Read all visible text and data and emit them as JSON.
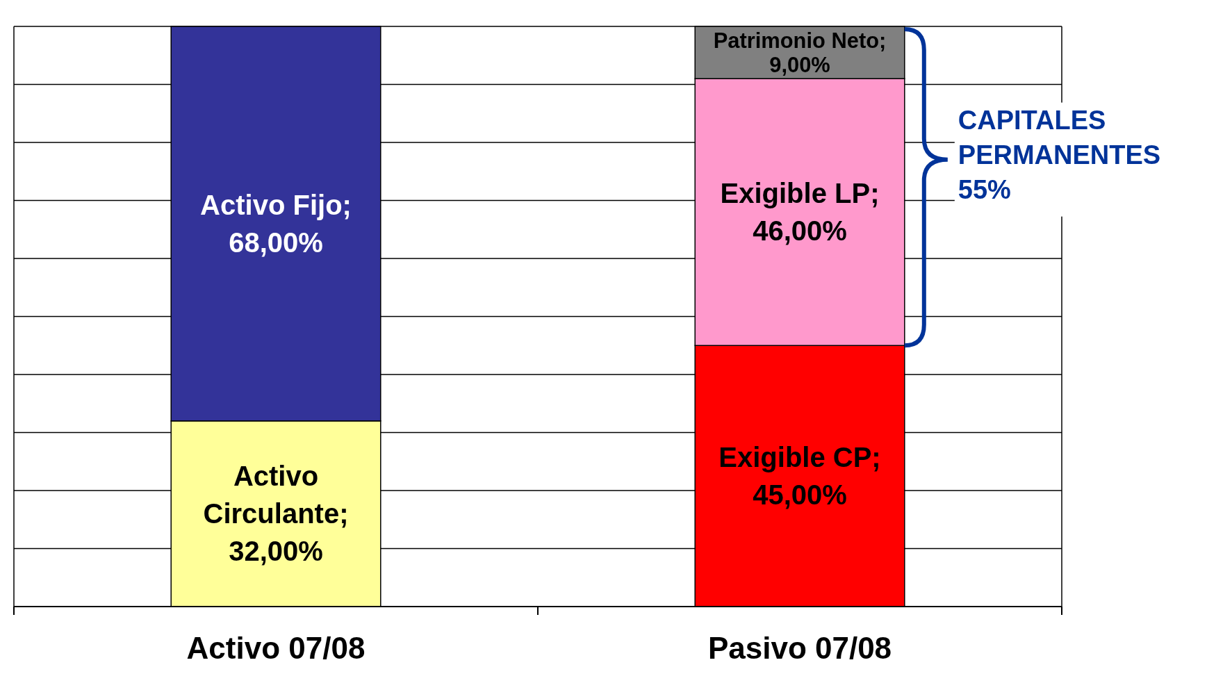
{
  "chart_data": {
    "type": "bar",
    "stacked": true,
    "categories": [
      "Activo 07/08",
      "Pasivo 07/08"
    ],
    "series": [
      {
        "colors": [
          "#ffff99",
          "#ff0000"
        ],
        "values": [
          32,
          45
        ],
        "value_labels": [
          "Activo Circulante; 32,00%",
          "Exigible CP; 45,00%"
        ]
      },
      {
        "colors": [
          "#333399",
          "#ff99cc"
        ],
        "values": [
          68,
          46
        ],
        "value_labels": [
          "Activo Fijo; 68,00%",
          "Exigible LP; 46,00%"
        ]
      },
      {
        "colors": [
          null,
          "#808080"
        ],
        "values": [
          null,
          9
        ],
        "value_labels": [
          null,
          "Patrimonio Neto; 9,00%"
        ]
      }
    ],
    "ylim": [
      0,
      100
    ],
    "yticks": [
      {
        "value": 0,
        "label": null
      },
      {
        "value": 10,
        "label": null
      },
      {
        "value": 20,
        "label": null
      },
      {
        "value": 30,
        "label": null
      },
      {
        "value": 40,
        "label": null
      },
      {
        "value": 50,
        "label": null
      },
      {
        "value": 60,
        "label": null
      },
      {
        "value": 70,
        "label": null
      },
      {
        "value": 80,
        "label": null
      },
      {
        "value": 90,
        "label": null
      },
      {
        "value": 100,
        "label": null
      }
    ],
    "grid": "y",
    "tick_labels": "x",
    "annotations": [
      "CAPITALES PERMANENTES 55%"
    ]
  }
}
